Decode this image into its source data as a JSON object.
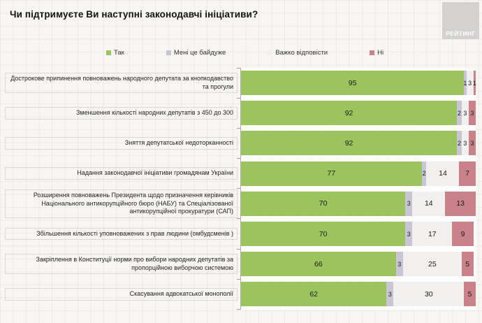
{
  "header": {
    "title": "Чи підтримуєте Ви наступні законодавчі ініціативи?",
    "logo_text": "РЕЙТИНГ"
  },
  "colors": {
    "page_background": "#f7f6f3",
    "plot_background": "#ffffff",
    "axis": "#b3afa8",
    "logo_background": "#d3d2d1"
  },
  "chart_data": {
    "type": "bar",
    "orientation": "horizontal",
    "stacked": true,
    "unit": "percent",
    "xlim": [
      0,
      100
    ],
    "legend_position": "top",
    "grid": true,
    "title": "Чи підтримуєте Ви наступні законодавчі ініціативи?",
    "categories": [
      "Дострокове припинення повноважень народного депутата за кнопкодавство та прогули",
      "Зменшення кількості народних депутатів  з 450 до 300",
      "Зняття депутатської недоторканності",
      "Надання законодавчої ініціативи громадянам України",
      "Розширення повноважень Президента щодо призначення керівників Національного антикорупційного бюро (НАБУ) та Спеціалізованої антикорупційної прокуратури (САП)",
      "Збільшення кількості уповноважених з прав людини (омбудсменів )",
      "Закріплення в Конституції норми про вибори народних депутатів за пропорційною виборчою системою",
      "Скасування адвокатської монополії"
    ],
    "series": [
      {
        "name": "Так",
        "color": "#9cc45e",
        "values": [
          95,
          92,
          92,
          77,
          70,
          70,
          66,
          62
        ]
      },
      {
        "name": "Мені це байдуже",
        "color": "#c8c6d4",
        "values": [
          1,
          2,
          2,
          2,
          3,
          3,
          3,
          3
        ]
      },
      {
        "name": "Важко відповісти",
        "color": "#f1f0ee",
        "values": [
          3,
          3,
          3,
          14,
          14,
          17,
          25,
          30
        ]
      },
      {
        "name": "Ні",
        "color": "#c9828a",
        "values": [
          1,
          3,
          3,
          7,
          13,
          9,
          5,
          5
        ]
      }
    ]
  }
}
